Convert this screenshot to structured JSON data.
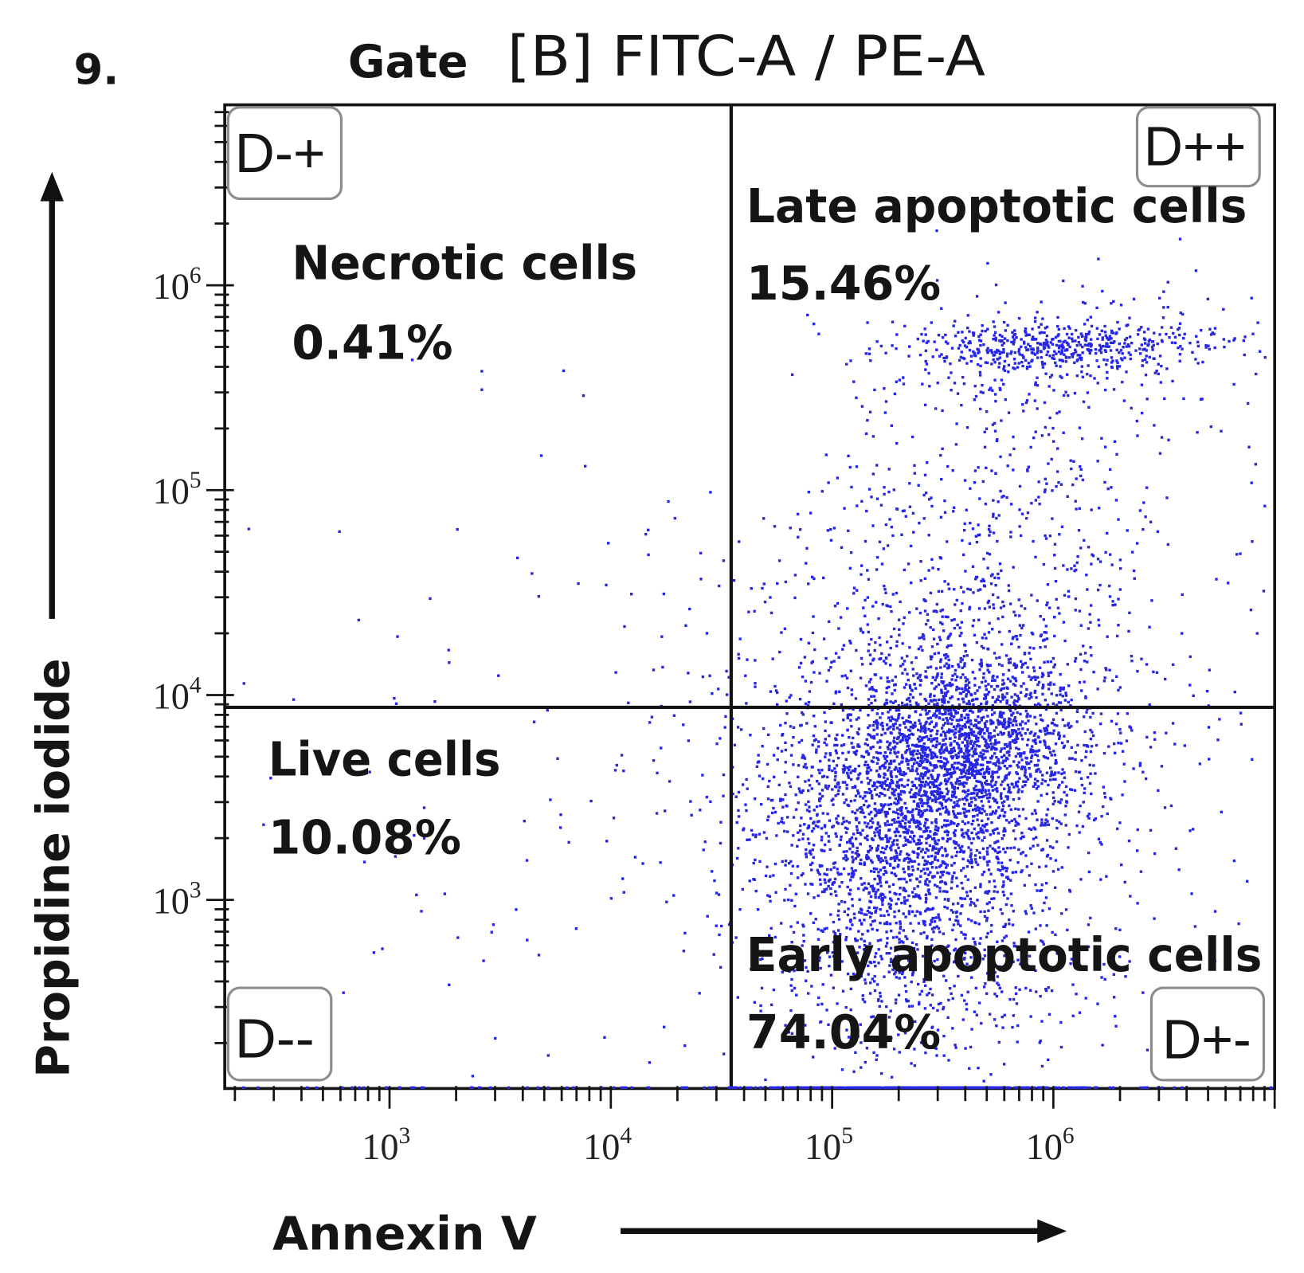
{
  "figure_number": "9.",
  "chart_data": {
    "type": "scatter",
    "gate_label": "Gate",
    "title": "[B] FITC-A / PE-A",
    "xlabel": "Annexin V",
    "ylabel": "Propidine iodide",
    "x_log": true,
    "y_log": true,
    "xlim": [
      180,
      10000000
    ],
    "ylim": [
      120,
      7600000
    ],
    "tick_base": "10",
    "x_tick_exponents": [
      3,
      4,
      5,
      6
    ],
    "y_tick_exponents": [
      3,
      4,
      5,
      6
    ],
    "quadrant_gates": {
      "x": 35000,
      "y": 8700
    },
    "quadrants": [
      {
        "id": "D-+",
        "population": "Necrotic cells",
        "percent": "0.41%"
      },
      {
        "id": "D++",
        "population": "Late apoptotic cells",
        "percent": "15.46%"
      },
      {
        "id": "D--",
        "population": "Live cells",
        "percent": "10.08%"
      },
      {
        "id": "D+-",
        "population": "Early apoptotic cells",
        "percent": "74.04%"
      }
    ],
    "point_color": "#2626e3",
    "event_clusters": [
      {
        "log10_center": [
          5.63,
          3.75
        ],
        "log10_sd": [
          0.26,
          0.24
        ],
        "count": 1500
      },
      {
        "log10_center": [
          5.3,
          3.4
        ],
        "log10_sd": [
          0.3,
          0.32
        ],
        "count": 1400
      },
      {
        "log10_center": [
          5.52,
          3.8
        ],
        "log10_sd": [
          0.55,
          0.62
        ],
        "count": 1200
      },
      {
        "log10_center": [
          6.03,
          5.7
        ],
        "log10_sd": [
          0.36,
          0.055
        ],
        "count": 420
      },
      {
        "log10_center": [
          5.98,
          5.64
        ],
        "log10_sd": [
          0.42,
          0.2
        ],
        "count": 230
      },
      {
        "log10_center": [
          5.8,
          4.85
        ],
        "log10_sd": [
          0.42,
          0.45
        ],
        "count": 330
      },
      {
        "log10_center": [
          5.4,
          2.7
        ],
        "log10_sd": [
          0.36,
          0.28
        ],
        "count": 520
      },
      {
        "log10_center": [
          3.6,
          3.7
        ],
        "log10_sd": [
          0.62,
          0.8
        ],
        "count": 95
      },
      {
        "log10_center": [
          5.4,
          2.08
        ],
        "log10_sd": [
          0.45,
          0
        ],
        "count": 420
      },
      {
        "log10_center": [
          3.5,
          2.08
        ],
        "log10_sd": [
          0.9,
          0
        ],
        "count": 50
      }
    ]
  }
}
